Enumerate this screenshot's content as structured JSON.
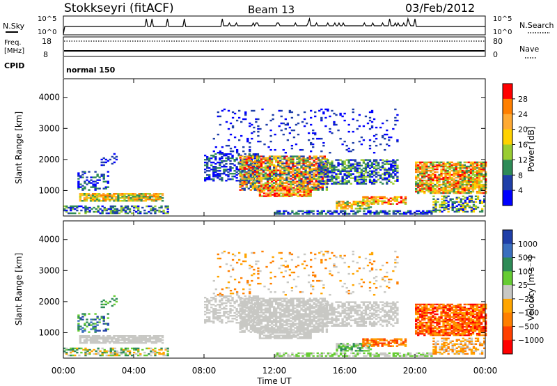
{
  "header": {
    "station": "Stokkseyri (fitACF)",
    "beam": "Beam 13",
    "date": "03/Feb/2012"
  },
  "noise_panel": {
    "left_label": "N.Sky",
    "left_ticks": [
      "10^5",
      "10^0"
    ],
    "right_ticks": [
      "10^5",
      "10^0"
    ],
    "right_label": "N.Search"
  },
  "freq_panel": {
    "left_label_1": "Freq.",
    "left_label_2": "[MHz]",
    "left_ticks": [
      "18",
      "8"
    ],
    "right_ticks": [
      "80",
      "0"
    ],
    "right_label": "Nave"
  },
  "cpid": {
    "label": "CPID",
    "mode": "normal 150"
  },
  "chart_data": [
    {
      "type": "heatmap",
      "name": "Power",
      "ylabel": "Slant Range [km]",
      "yticks": [
        "1000",
        "2000",
        "3000",
        "4000"
      ],
      "colorbar_label": "Power [dB]",
      "colorbar_ticks": [
        "28",
        "24",
        "20",
        "16",
        "12",
        "8",
        "4"
      ],
      "colorbar_colors": [
        "#ff0000",
        "#ff7f00",
        "#ffaa33",
        "#ffd200",
        "#9acd32",
        "#2e8b57",
        "#1f3fa8",
        "#0000ff"
      ]
    },
    {
      "type": "heatmap",
      "name": "Velocity",
      "ylabel": "Slant Range [km]",
      "yticks": [
        "1000",
        "2000",
        "3000",
        "4000"
      ],
      "colorbar_label": "Velocity [m s⁻¹]",
      "colorbar_ticks": [
        "1000",
        "500",
        "100",
        "25",
        "−25",
        "−100",
        "−500",
        "−1000"
      ],
      "colorbar_colors": [
        "#1f3fa8",
        "#3a6fbf",
        "#2e8b57",
        "#66cc33",
        "#c8c8c4",
        "#ffa500",
        "#ff7f00",
        "#ff4000",
        "#ff0000"
      ]
    }
  ],
  "xaxis": {
    "ticks": [
      "00:00",
      "04:00",
      "08:00",
      "12:00",
      "16:00",
      "20:00",
      "00:00"
    ],
    "label": "Time UT"
  }
}
